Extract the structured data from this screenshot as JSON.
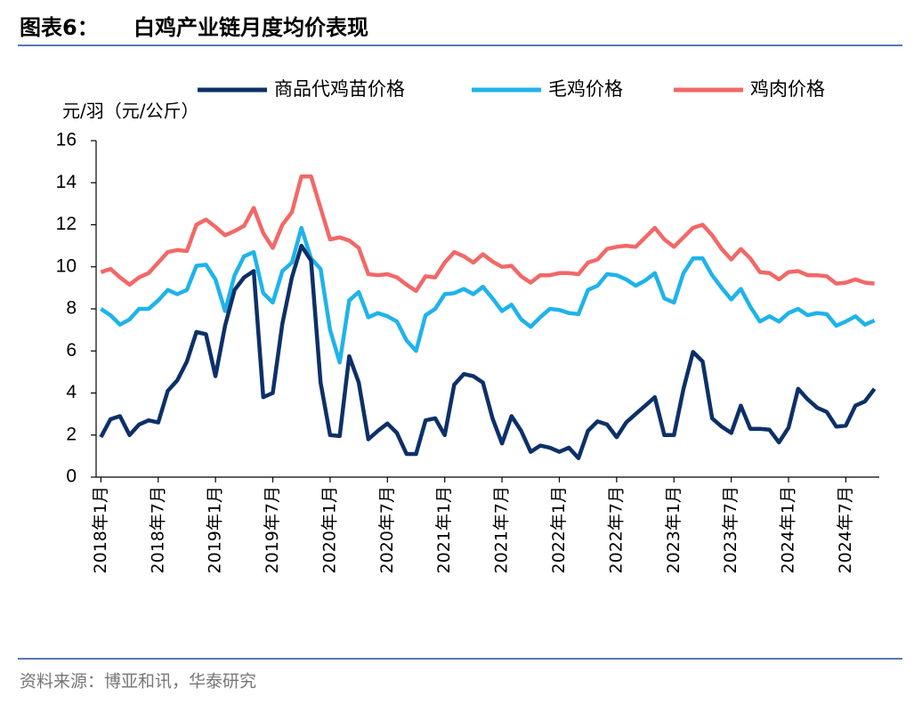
{
  "chart_data": {
    "type": "line",
    "figure_label": "图表6：",
    "title": "白鸡产业链月度均价表现",
    "y_label": "元/羽（元/公斤）",
    "source": "资料来源：博亚和讯，华泰研究",
    "categories": [
      "2018年1月",
      null,
      null,
      null,
      null,
      null,
      "2018年7月",
      null,
      null,
      null,
      null,
      null,
      "2019年1月",
      null,
      null,
      null,
      null,
      null,
      "2019年7月",
      null,
      null,
      null,
      null,
      null,
      "2020年1月",
      null,
      null,
      null,
      null,
      null,
      "2020年7月",
      null,
      null,
      null,
      null,
      null,
      "2021年1月",
      null,
      null,
      null,
      null,
      null,
      "2021年7月",
      null,
      null,
      null,
      null,
      null,
      "2022年1月",
      null,
      null,
      null,
      null,
      null,
      "2022年7月",
      null,
      null,
      null,
      null,
      null,
      "2023年1月",
      null,
      null,
      null,
      null,
      null,
      "2023年7月",
      null,
      null,
      null,
      null,
      null,
      "2024年1月",
      null,
      null,
      null,
      null,
      null,
      "2024年7月",
      null,
      null,
      null
    ],
    "series": [
      {
        "name": "商品代鸡苗价格",
        "color": "#0c3068",
        "values": [
          1.9,
          2.75,
          2.9,
          2.0,
          2.5,
          2.7,
          2.6,
          4.1,
          4.6,
          5.5,
          6.9,
          6.8,
          4.8,
          7.2,
          8.9,
          9.5,
          9.8,
          3.8,
          4.0,
          7.3,
          9.5,
          11.0,
          10.3,
          4.5,
          2.0,
          1.95,
          5.75,
          4.5,
          1.8,
          2.2,
          2.55,
          2.1,
          1.1,
          1.1,
          2.7,
          2.8,
          2.0,
          4.4,
          4.9,
          4.8,
          4.5,
          2.8,
          1.6,
          2.9,
          2.2,
          1.2,
          1.5,
          1.4,
          1.2,
          1.4,
          0.9,
          2.2,
          2.65,
          2.5,
          1.9,
          2.6,
          3.0,
          3.4,
          3.8,
          2.0,
          2.0,
          4.2,
          5.95,
          5.5,
          2.8,
          2.4,
          2.1,
          3.4,
          2.3,
          2.3,
          2.25,
          1.65,
          2.35,
          4.2,
          3.7,
          3.3,
          3.1,
          2.4,
          2.45,
          3.4,
          3.6,
          4.2
        ]
      },
      {
        "name": "毛鸡价格",
        "color": "#1fb3ea",
        "values": [
          8.0,
          7.7,
          7.25,
          7.5,
          8.0,
          8.0,
          8.4,
          8.9,
          8.7,
          8.9,
          10.05,
          10.1,
          9.4,
          7.9,
          9.6,
          10.5,
          10.7,
          8.75,
          8.3,
          9.8,
          10.2,
          11.85,
          10.4,
          9.9,
          7.0,
          5.45,
          8.4,
          8.8,
          7.6,
          7.8,
          7.65,
          7.4,
          6.5,
          6.0,
          7.7,
          8.0,
          8.7,
          8.75,
          8.95,
          8.7,
          9.05,
          8.5,
          7.9,
          8.2,
          7.5,
          7.15,
          7.6,
          8.0,
          7.95,
          7.8,
          7.75,
          8.9,
          9.1,
          9.65,
          9.6,
          9.4,
          9.1,
          9.35,
          9.7,
          8.5,
          8.3,
          9.7,
          10.4,
          10.4,
          9.6,
          9.0,
          8.45,
          8.95,
          8.1,
          7.4,
          7.65,
          7.4,
          7.8,
          8.0,
          7.7,
          7.8,
          7.75,
          7.2,
          7.4,
          7.65,
          7.25,
          7.45
        ]
      },
      {
        "name": "鸡肉价格",
        "color": "#f26868",
        "values": [
          9.75,
          9.9,
          9.5,
          9.15,
          9.5,
          9.7,
          10.2,
          10.7,
          10.8,
          10.75,
          12.0,
          12.25,
          11.9,
          11.5,
          11.7,
          11.95,
          12.8,
          11.6,
          10.9,
          12.0,
          12.6,
          14.3,
          14.3,
          12.8,
          11.3,
          11.4,
          11.25,
          10.9,
          9.65,
          9.6,
          9.65,
          9.5,
          9.15,
          8.85,
          9.55,
          9.5,
          10.2,
          10.7,
          10.5,
          10.2,
          10.6,
          10.25,
          10.0,
          10.05,
          9.55,
          9.25,
          9.6,
          9.6,
          9.7,
          9.7,
          9.65,
          10.2,
          10.35,
          10.85,
          10.95,
          11.0,
          10.95,
          11.4,
          11.85,
          11.3,
          10.95,
          11.4,
          11.85,
          12.0,
          11.5,
          10.85,
          10.35,
          10.85,
          10.4,
          9.75,
          9.7,
          9.4,
          9.75,
          9.8,
          9.6,
          9.6,
          9.55,
          9.2,
          9.25,
          9.4,
          9.25,
          9.2
        ]
      }
    ],
    "ylim": [
      0,
      16
    ],
    "yticks": [
      0,
      2,
      4,
      6,
      8,
      10,
      12,
      14,
      16
    ],
    "grid": false,
    "legend": "top"
  }
}
